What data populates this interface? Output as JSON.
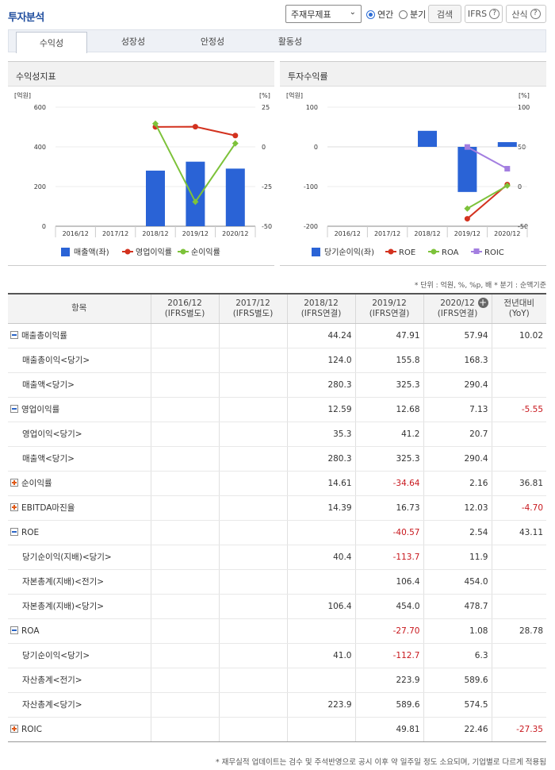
{
  "header": {
    "title": "투자분석",
    "select_value": "주재무제표",
    "radio_annual": "연간",
    "radio_quarter": "분기",
    "search_button": "검색",
    "ifrs_button": "IFRS",
    "formula_button": "산식"
  },
  "tabs": [
    "수익성",
    "성장성",
    "안정성",
    "활동성"
  ],
  "left_panel": {
    "title": "수익성지표",
    "left_unit": "[억원]",
    "right_unit": "[%]",
    "legend": [
      "매출액(좌)",
      "영업이익률",
      "순이익률"
    ]
  },
  "right_panel": {
    "title": "투자수익률",
    "left_unit": "[억원]",
    "right_unit": "[%]",
    "legend": [
      "당기순이익(좌)",
      "ROE",
      "ROA",
      "ROIC"
    ]
  },
  "chart_data": [
    {
      "type": "bar",
      "title": "수익성지표",
      "categories": [
        "2016/12",
        "2017/12",
        "2018/12",
        "2019/12",
        "2020/12"
      ],
      "y_left_ticks": [
        "600",
        "400",
        "200",
        "0"
      ],
      "y_right_ticks": [
        "25",
        "0",
        "-25",
        "-50"
      ],
      "ylim_left": [
        0,
        600
      ],
      "ylim_right": [
        -50,
        25
      ],
      "series": [
        {
          "name": "매출액(좌)",
          "kind": "bar",
          "axis": "left",
          "color": "#2a63d6",
          "values": [
            null,
            null,
            280.3,
            325.3,
            290.4
          ]
        },
        {
          "name": "영업이익률",
          "kind": "line",
          "axis": "right",
          "color": "#d3321f",
          "values": [
            null,
            null,
            12.59,
            12.68,
            7.13
          ]
        },
        {
          "name": "순이익률",
          "kind": "line",
          "axis": "right",
          "color": "#7dc23a",
          "values": [
            null,
            null,
            14.61,
            -34.64,
            2.16
          ]
        }
      ]
    },
    {
      "type": "bar",
      "title": "투자수익률",
      "categories": [
        "2016/12",
        "2017/12",
        "2018/12",
        "2019/12",
        "2020/12"
      ],
      "y_left_ticks": [
        "100",
        "0",
        "-100",
        "-200"
      ],
      "y_right_ticks": [
        "100",
        "50",
        "0",
        "-50"
      ],
      "ylim_left": [
        -200,
        100
      ],
      "ylim_right": [
        -50,
        100
      ],
      "series": [
        {
          "name": "당기순이익(좌)",
          "kind": "bar",
          "axis": "left",
          "color": "#2a63d6",
          "values": [
            null,
            null,
            40.4,
            -113.7,
            11.9
          ]
        },
        {
          "name": "ROE",
          "kind": "line",
          "axis": "right",
          "color": "#d3321f",
          "values": [
            null,
            null,
            null,
            -40.57,
            2.54
          ]
        },
        {
          "name": "ROA",
          "kind": "line",
          "axis": "right",
          "color": "#7dc23a",
          "values": [
            null,
            null,
            null,
            -27.7,
            1.08
          ]
        },
        {
          "name": "ROIC",
          "kind": "line",
          "axis": "right",
          "color": "#a37ee0",
          "values": [
            null,
            null,
            null,
            49.81,
            22.46
          ]
        }
      ]
    }
  ],
  "note": "* 단위 : 억원, %, %p, 배   * 분기 : 순액기준",
  "table": {
    "headers": [
      {
        "line1": "항목",
        "line2": ""
      },
      {
        "line1": "2016/12",
        "line2": "(IFRS별도)"
      },
      {
        "line1": "2017/12",
        "line2": "(IFRS별도)"
      },
      {
        "line1": "2018/12",
        "line2": "(IFRS연결)"
      },
      {
        "line1": "2019/12",
        "line2": "(IFRS연결)"
      },
      {
        "line1": "2020/12",
        "line2": "(IFRS연결)"
      },
      {
        "line1": "전년대비",
        "line2": "(YoY)"
      }
    ],
    "rows": [
      {
        "label": "매출총이익률",
        "toggle": "minus",
        "cells": [
          "",
          "",
          "44.24",
          "47.91",
          "57.94",
          "10.02"
        ]
      },
      {
        "label": "매출총이익<당기>",
        "toggle": "",
        "cells": [
          "",
          "",
          "124.0",
          "155.8",
          "168.3",
          ""
        ]
      },
      {
        "label": "매출액<당기>",
        "toggle": "",
        "cells": [
          "",
          "",
          "280.3",
          "325.3",
          "290.4",
          ""
        ]
      },
      {
        "label": "영업이익률",
        "toggle": "minus",
        "cells": [
          "",
          "",
          "12.59",
          "12.68",
          "7.13",
          "-5.55"
        ]
      },
      {
        "label": "영업이익<당기>",
        "toggle": "",
        "cells": [
          "",
          "",
          "35.3",
          "41.2",
          "20.7",
          ""
        ]
      },
      {
        "label": "매출액<당기>",
        "toggle": "",
        "cells": [
          "",
          "",
          "280.3",
          "325.3",
          "290.4",
          ""
        ]
      },
      {
        "label": "순이익률",
        "toggle": "plus",
        "cells": [
          "",
          "",
          "14.61",
          "-34.64",
          "2.16",
          "36.81"
        ]
      },
      {
        "label": "EBITDA마진율",
        "toggle": "plus",
        "cells": [
          "",
          "",
          "14.39",
          "16.73",
          "12.03",
          "-4.70"
        ]
      },
      {
        "label": "ROE",
        "toggle": "minus",
        "cells": [
          "",
          "",
          "",
          "-40.57",
          "2.54",
          "43.11"
        ]
      },
      {
        "label": "당기순이익(지배)<당기>",
        "toggle": "",
        "cells": [
          "",
          "",
          "40.4",
          "-113.7",
          "11.9",
          ""
        ]
      },
      {
        "label": "자본총계(지배)<전기>",
        "toggle": "",
        "cells": [
          "",
          "",
          "",
          "106.4",
          "454.0",
          ""
        ]
      },
      {
        "label": "자본총계(지배)<당기>",
        "toggle": "",
        "cells": [
          "",
          "",
          "106.4",
          "454.0",
          "478.7",
          ""
        ]
      },
      {
        "label": "ROA",
        "toggle": "minus",
        "cells": [
          "",
          "",
          "",
          "-27.70",
          "1.08",
          "28.78"
        ]
      },
      {
        "label": "당기순이익<당기>",
        "toggle": "",
        "cells": [
          "",
          "",
          "41.0",
          "-112.7",
          "6.3",
          ""
        ]
      },
      {
        "label": "자산총계<전기>",
        "toggle": "",
        "cells": [
          "",
          "",
          "",
          "223.9",
          "589.6",
          ""
        ]
      },
      {
        "label": "자산총계<당기>",
        "toggle": "",
        "cells": [
          "",
          "",
          "223.9",
          "589.6",
          "574.5",
          ""
        ]
      },
      {
        "label": "ROIC",
        "toggle": "plus",
        "cells": [
          "",
          "",
          "",
          "49.81",
          "22.46",
          "-27.35"
        ]
      }
    ]
  },
  "footer": "* 재무실적 업데이트는 검수 및 주석반영으로 공시 이후 약 일주일 정도 소요되며, 기업별로 다르게 적용됨"
}
